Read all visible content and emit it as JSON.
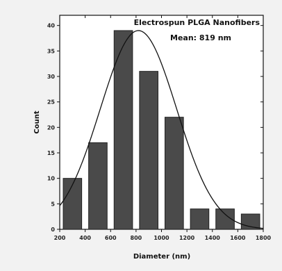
{
  "chart_data": {
    "type": "bar",
    "title": "",
    "annotations": [
      "Electrospun PLGA Nanofibers",
      "Mean: 819 nm"
    ],
    "xlabel": "Diameter (nm)",
    "ylabel": "Count",
    "xlim": [
      200,
      1800
    ],
    "ylim": [
      0,
      42
    ],
    "xticks": [
      200,
      400,
      600,
      800,
      1000,
      1200,
      1400,
      1600,
      1800
    ],
    "yticks": [
      0,
      5,
      10,
      15,
      20,
      25,
      30,
      35,
      40
    ],
    "bin_width": 200,
    "categories": [
      "200-400",
      "400-600",
      "600-800",
      "800-1000",
      "1000-1200",
      "1200-1400",
      "1400-1600",
      "1600-1800"
    ],
    "bin_centers": [
      300,
      500,
      700,
      900,
      1100,
      1300,
      1500,
      1700
    ],
    "values": [
      10,
      17,
      39,
      31,
      22,
      4,
      4,
      3
    ],
    "fit_curve": {
      "type": "gaussian",
      "peak": 39,
      "mean": 819,
      "sigma": 300
    },
    "grid": false,
    "legend": "none",
    "colors": {
      "bar": "#4a4a4a",
      "background": "#f2f2f2",
      "axis": "#111111"
    }
  }
}
